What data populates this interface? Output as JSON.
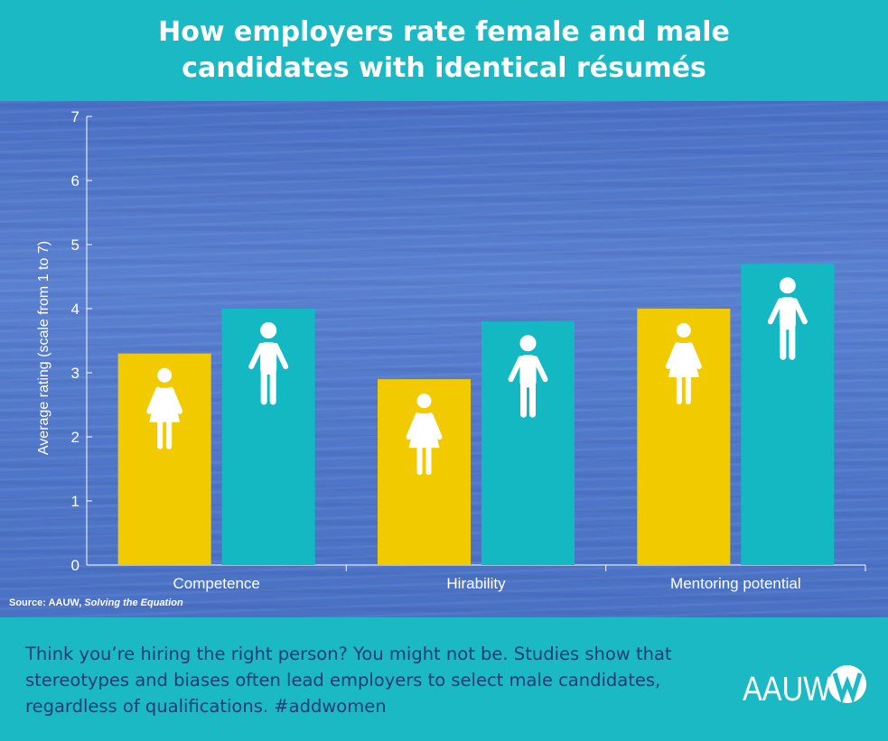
{
  "title_line1": "How employers rate female and male",
  "title_line2": "candidates with identical résumés",
  "source_prefix": "Source: AAUW, ",
  "source_title": "Solving the Equation",
  "footer_text": "Think you’re hiring the right person? You might not be. Studies show that stereotypes and biases often lead employers to select male candidates, regardless of qualifications. #addwomen",
  "logo_text": "AAUW",
  "colors": {
    "female": "#f1cb00",
    "male": "#13b8c3",
    "background": "#1ab9c4",
    "plot": "#5178c9",
    "footer_text": "#1f3a78"
  },
  "icons": {
    "female": "woman-figure-icon",
    "male": "man-figure-icon"
  },
  "chart_data": {
    "type": "bar",
    "categories": [
      "Competence",
      "Hirability",
      "Mentoring potential"
    ],
    "series": [
      {
        "values": [
          3.3,
          2.9,
          4.0
        ],
        "color": "#f1cb00",
        "icon": "woman-figure-icon"
      },
      {
        "values": [
          4.0,
          3.8,
          4.7
        ],
        "color": "#13b8c3",
        "icon": "man-figure-icon"
      }
    ],
    "ylabel": "Average rating (scale from 1 to 7)",
    "xlabel": "",
    "ylim": [
      0,
      7
    ],
    "yticks": [
      0,
      1,
      2,
      3,
      4,
      5,
      6,
      7
    ],
    "grid": false,
    "legend": "none"
  }
}
